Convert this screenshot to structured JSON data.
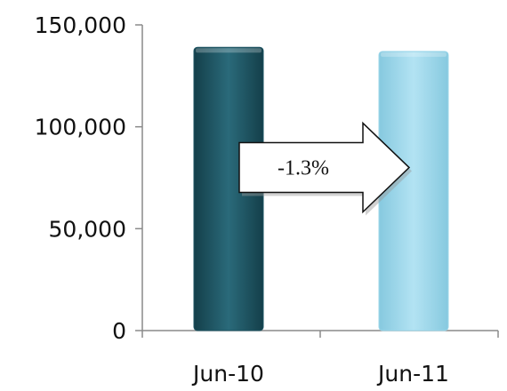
{
  "chart_data": {
    "type": "bar",
    "categories": [
      "Jun-10",
      "Jun-11"
    ],
    "values": [
      139000,
      137000
    ],
    "title": "",
    "xlabel": "",
    "ylabel": "",
    "ylim": [
      0,
      150000
    ],
    "y_ticks": [
      "0",
      "50,000",
      "100,000",
      "150,000"
    ],
    "y_tick_values": [
      0,
      50000,
      100000,
      150000
    ],
    "bar_colors": [
      "#1e5563",
      "#9dd7ea"
    ],
    "grid": false,
    "legend": "none",
    "annotations": [
      {
        "text": "-1.3%",
        "type": "arrow",
        "direction": "right"
      }
    ]
  }
}
